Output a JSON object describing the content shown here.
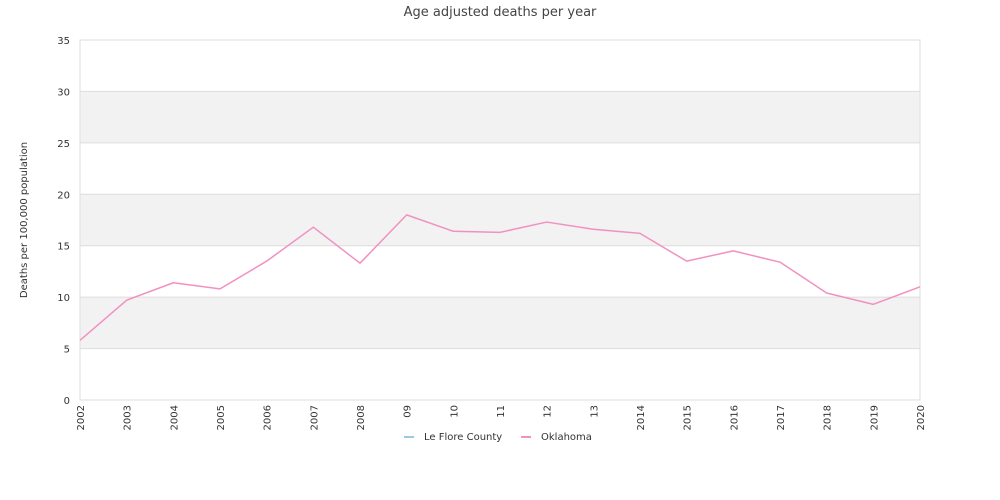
{
  "chart_data": {
    "type": "line",
    "title": "Age adjusted deaths per year",
    "ylabel": "Deaths per 100,000 population",
    "xlabel": "",
    "ylim": [
      0,
      35
    ],
    "yticks": [
      0,
      5,
      10,
      15,
      20,
      25,
      30,
      35
    ],
    "categories": [
      "2002",
      "2003",
      "2004",
      "2005",
      "2006",
      "2007",
      "2008",
      "09",
      "10",
      "11",
      "12",
      "13",
      "2014",
      "2015",
      "2016",
      "2017",
      "2018",
      "2019",
      "2020"
    ],
    "series": [
      {
        "name": "Le Flore County",
        "color": "#9ecae1",
        "values": [
          null,
          null,
          null,
          null,
          null,
          null,
          null,
          null,
          null,
          null,
          null,
          null,
          null,
          null,
          null,
          null,
          null,
          null,
          null
        ]
      },
      {
        "name": "Oklahoma",
        "color": "#f191c1",
        "values": [
          5.8,
          9.7,
          11.4,
          10.8,
          13.5,
          16.8,
          13.3,
          18.0,
          16.4,
          16.3,
          17.3,
          16.6,
          16.2,
          13.5,
          14.5,
          13.4,
          10.4,
          9.3,
          11.0
        ]
      }
    ],
    "grid": true,
    "legend_position": "bottom-center",
    "colors": {
      "band": "#f2f2f2",
      "gridline": "#dddddd",
      "axis": "#cccccc"
    }
  }
}
